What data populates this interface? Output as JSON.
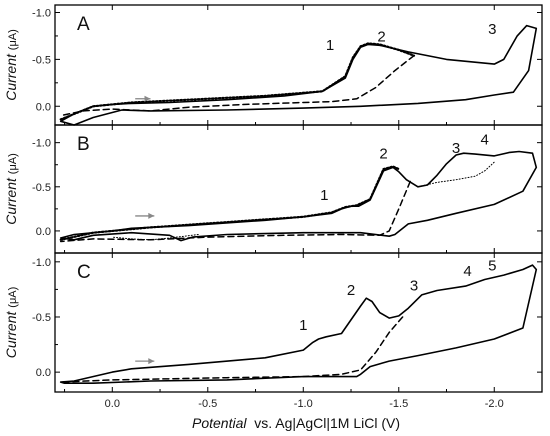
{
  "chart_data": {
    "type": "line",
    "xlabel": {
      "italic": "Potential",
      "rest": "  vs. Ag|AgCl|1M LiCl (V)"
    },
    "xticks": [
      "0.0",
      "-0.5",
      "-1.0",
      "-1.5",
      "-2.0"
    ],
    "xlim": [
      0.3,
      -2.25
    ],
    "panels": [
      {
        "letter": "A",
        "ylabel": {
          "main": "Current",
          "unit": "(μA)"
        },
        "ylim": [
          0.2,
          -1.08
        ],
        "yticks": [
          "-1.0",
          "-0.5",
          "0.0"
        ],
        "peaks": [
          {
            "label": "1",
            "x": -1.14,
            "y": -0.6
          },
          {
            "label": "2",
            "x": -1.41,
            "y": -0.69
          },
          {
            "label": "3",
            "x": -1.99,
            "y": -0.77
          }
        ],
        "arrow": {
          "from": [
            -0.12,
            -0.08
          ],
          "to": [
            -0.2,
            -0.08
          ]
        },
        "series": [
          {
            "style": "solid",
            "x": [
              -0.1,
              -0.3,
              -0.6,
              -0.9,
              -1.1,
              -1.22,
              -1.26,
              -1.3,
              -1.34,
              -1.4,
              -1.55,
              -1.75,
              -2.0,
              -2.05,
              -2.12,
              -2.17,
              -2.22,
              -2.18,
              -2.1,
              -2.0,
              -1.85,
              -1.6,
              -1.3,
              -1.0,
              -0.6,
              -0.2,
              -0.05,
              0.1,
              0.2,
              0.27,
              0.2,
              0.1,
              0.0,
              -0.1
            ],
            "y": [
              -0.03,
              -0.04,
              -0.07,
              -0.11,
              -0.16,
              -0.3,
              -0.5,
              -0.63,
              -0.66,
              -0.65,
              -0.58,
              -0.5,
              -0.45,
              -0.5,
              -0.75,
              -0.86,
              -0.83,
              -0.38,
              -0.15,
              -0.12,
              -0.07,
              -0.03,
              0.0,
              0.02,
              0.04,
              0.05,
              0.04,
              0.12,
              0.2,
              0.16,
              0.08,
              0.0,
              -0.02,
              -0.03
            ]
          },
          {
            "style": "dotted",
            "x": [
              0.27,
              0.1,
              -0.1,
              -0.4,
              -0.8,
              -1.1,
              -1.22,
              -1.26,
              -1.3,
              -1.34,
              -1.4,
              -1.5,
              -1.58
            ],
            "y": [
              0.14,
              0.0,
              -0.04,
              -0.07,
              -0.11,
              -0.16,
              -0.32,
              -0.52,
              -0.64,
              -0.67,
              -0.66,
              -0.6,
              -0.54
            ]
          },
          {
            "style": "dashed",
            "x": [
              -1.58,
              -1.48,
              -1.38,
              -1.28,
              -1.15,
              -1.0,
              -0.7,
              -0.4,
              -0.2,
              0.0,
              0.15,
              0.27
            ],
            "y": [
              -0.54,
              -0.38,
              -0.2,
              -0.08,
              -0.05,
              -0.04,
              -0.02,
              0.01,
              0.05,
              0.03,
              0.05,
              0.1
            ]
          }
        ]
      },
      {
        "letter": "B",
        "ylabel": {
          "main": "Current",
          "unit": "(μA)"
        },
        "ylim": [
          0.25,
          -1.2
        ],
        "yticks": [
          "-1.0",
          "-0.5",
          "0.0"
        ],
        "peaks": [
          {
            "label": "1",
            "x": -1.11,
            "y": -0.35
          },
          {
            "label": "2",
            "x": -1.42,
            "y": -0.82
          },
          {
            "label": "3",
            "x": -1.8,
            "y": -0.88
          },
          {
            "label": "4",
            "x": -1.95,
            "y": -0.98
          }
        ],
        "arrow": {
          "from": [
            -0.12,
            -0.17
          ],
          "to": [
            -0.22,
            -0.17
          ]
        },
        "series": [
          {
            "style": "solid",
            "x": [
              -0.1,
              -0.4,
              -0.8,
              -1.0,
              -1.15,
              -1.2,
              -1.25,
              -1.29,
              -1.35,
              -1.42,
              -1.47,
              -1.5,
              -1.54,
              -1.6,
              -1.65,
              -1.7,
              -1.75,
              -1.8,
              -1.84,
              -1.9,
              -2.0,
              -2.08,
              -2.13,
              -2.2,
              -2.22,
              -2.15,
              -2.0,
              -1.8,
              -1.65,
              -1.55,
              -1.48,
              -1.45,
              -1.3,
              -1.0,
              -0.6,
              -0.42,
              -0.36,
              -0.3,
              -0.1,
              0.1,
              0.2,
              0.27,
              0.2,
              0.0,
              -0.1
            ],
            "y": [
              -0.03,
              -0.06,
              -0.12,
              -0.16,
              -0.2,
              -0.25,
              -0.28,
              -0.28,
              -0.35,
              -0.68,
              -0.72,
              -0.67,
              -0.58,
              -0.5,
              -0.52,
              -0.63,
              -0.76,
              -0.86,
              -0.88,
              -0.87,
              -0.85,
              -0.89,
              -0.9,
              -0.88,
              -0.72,
              -0.45,
              -0.3,
              -0.2,
              -0.12,
              -0.08,
              0.04,
              0.06,
              0.02,
              0.02,
              0.04,
              0.07,
              0.11,
              0.05,
              0.02,
              0.05,
              0.1,
              0.08,
              0.04,
              0.0,
              -0.03
            ]
          },
          {
            "style": "dotted-fine",
            "x": [
              -1.6,
              -1.7,
              -1.8,
              -1.9,
              -1.95,
              -2.0
            ],
            "y": [
              -0.5,
              -0.55,
              -0.58,
              -0.62,
              -0.68,
              -0.78
            ]
          },
          {
            "style": "dotted",
            "x": [
              0.27,
              0.1,
              -0.2,
              -0.6,
              -1.0,
              -1.15,
              -1.22,
              -1.28,
              -1.35,
              -1.42,
              -1.47,
              -1.5
            ],
            "y": [
              0.1,
              0.02,
              -0.04,
              -0.1,
              -0.16,
              -0.21,
              -0.27,
              -0.29,
              -0.36,
              -0.7,
              -0.73,
              -0.7
            ]
          },
          {
            "style": "dashed",
            "x": [
              -1.56,
              -1.5,
              -1.45,
              -1.4,
              -1.2,
              -0.9,
              -0.5,
              -0.2,
              0.1,
              0.27
            ],
            "y": [
              -0.56,
              -0.25,
              0.0,
              0.05,
              0.04,
              0.05,
              0.07,
              0.1,
              0.09,
              0.12
            ]
          },
          {
            "style": "dotted-fine",
            "x": [
              -0.45,
              -0.3,
              -0.2,
              -0.1,
              0.0
            ],
            "y": [
              0.04,
              0.08,
              0.1,
              0.09,
              0.07
            ]
          }
        ]
      },
      {
        "letter": "C",
        "ylabel": {
          "main": "Current",
          "unit": "(μA)"
        },
        "ylim": [
          0.18,
          -1.08
        ],
        "yticks": [
          "-1.0",
          "-0.5",
          "0.0"
        ],
        "peaks": [
          {
            "label": "1",
            "x": -1.0,
            "y": -0.38
          },
          {
            "label": "2",
            "x": -1.25,
            "y": -0.7
          },
          {
            "label": "3",
            "x": -1.58,
            "y": -0.74
          },
          {
            "label": "4",
            "x": -1.86,
            "y": -0.87
          },
          {
            "label": "5",
            "x": -1.99,
            "y": -0.92
          }
        ],
        "arrow": {
          "from": [
            -0.12,
            -0.1
          ],
          "to": [
            -0.22,
            -0.1
          ]
        },
        "series": [
          {
            "style": "solid",
            "x": [
              -0.1,
              -0.4,
              -0.8,
              -1.0,
              -1.05,
              -1.08,
              -1.12,
              -1.2,
              -1.3,
              -1.33,
              -1.36,
              -1.4,
              -1.45,
              -1.5,
              -1.55,
              -1.62,
              -1.7,
              -1.85,
              -1.95,
              -2.05,
              -2.15,
              -2.2,
              -2.22,
              -2.15,
              -2.0,
              -1.8,
              -1.6,
              -1.45,
              -1.35,
              -1.3,
              -1.28,
              -1.0,
              -0.6,
              -0.2,
              0.1,
              0.25,
              0.27,
              0.2,
              0.0,
              -0.1
            ],
            "y": [
              -0.03,
              -0.07,
              -0.13,
              -0.2,
              -0.27,
              -0.3,
              -0.32,
              -0.35,
              -0.6,
              -0.67,
              -0.64,
              -0.54,
              -0.49,
              -0.51,
              -0.58,
              -0.7,
              -0.74,
              -0.78,
              -0.84,
              -0.88,
              -0.93,
              -0.97,
              -0.93,
              -0.4,
              -0.3,
              -0.22,
              -0.15,
              -0.1,
              -0.05,
              0.02,
              0.04,
              0.04,
              0.07,
              0.08,
              0.1,
              0.1,
              0.09,
              0.08,
              0.0,
              -0.03
            ]
          },
          {
            "style": "dashed",
            "x": [
              -1.52,
              -1.45,
              -1.38,
              -1.3,
              -1.2,
              -1.0,
              -0.6,
              -0.3,
              0.0,
              0.27
            ],
            "y": [
              -0.5,
              -0.36,
              -0.18,
              -0.02,
              0.02,
              0.04,
              0.05,
              0.06,
              0.07,
              0.09
            ]
          }
        ]
      }
    ]
  }
}
